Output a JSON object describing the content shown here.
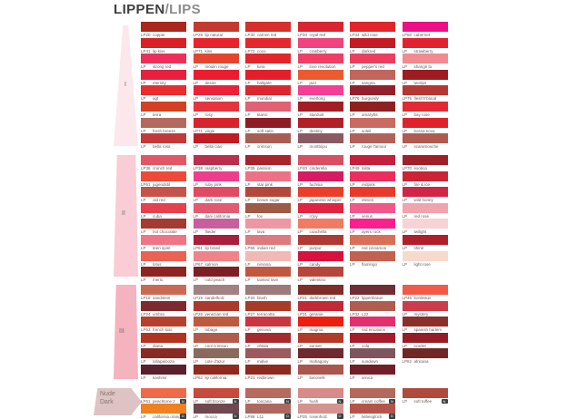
{
  "title": {
    "part1": "LIPPEN",
    "part2": "/LIPS"
  },
  "chart_data": {
    "type": "table",
    "title": "LIPPEN/LIPS",
    "legend_badges": {
      "nude": "N",
      "dark": "D"
    },
    "sections": [
      {
        "id": "I",
        "sidebar_label": "I",
        "bar_color": "#fce8ec",
        "columns": [
          [
            {
              "code": "LP20",
              "name": "copper",
              "color": "#a8281c"
            },
            {
              "code": "LP41",
              "name": "lip kiss",
              "color": "#d92026"
            },
            {
              "code": "LP",
              "name": "strong red",
              "color": "#ee2f5b"
            },
            {
              "code": "LP",
              "name": "eternity",
              "color": "#e6203e"
            },
            {
              "code": "LP",
              "name": "agt",
              "color": "#e92c2c"
            },
            {
              "code": "LP",
              "name": "terra",
              "color": "#d44023"
            },
            {
              "code": "LP",
              "name": "fresh breeze",
              "color": "#b4695d"
            },
            {
              "code": "LP",
              "name": "bella rosa",
              "color": "#c23a3a"
            }
          ],
          [
            {
              "code": "LP28",
              "name": "lip natural",
              "color": "#c53a30"
            },
            {
              "code": "LP71",
              "name": "kiss",
              "color": "#e7242d"
            },
            {
              "code": "LP",
              "name": "moulin rouge",
              "color": "#e34531"
            },
            {
              "code": "LP",
              "name": "desire",
              "color": "#ea1d2f"
            },
            {
              "code": "LP",
              "name": "sensation",
              "color": "#ec2139"
            },
            {
              "code": "LP",
              "name": "rosy",
              "color": "#e5333f"
            },
            {
              "code": "LP71",
              "name": "virgin",
              "color": "#d6242c"
            },
            {
              "code": "LP",
              "name": "bella ciao",
              "color": "#c01e24"
            }
          ],
          [
            {
              "code": "LP30",
              "name": "carmin red",
              "color": "#d7302b"
            },
            {
              "code": "LP72",
              "name": "coco",
              "color": "#e52830"
            },
            {
              "code": "LP",
              "name": "luna",
              "color": "#e2262c"
            },
            {
              "code": "LP",
              "name": "hallgate",
              "color": "#e31f2b"
            },
            {
              "code": "LP",
              "name": "mondial",
              "color": "#dc2731"
            },
            {
              "code": "LP",
              "name": "titanic",
              "color": "#df6174"
            },
            {
              "code": "LP",
              "name": "soft satin",
              "color": "#8e1c24"
            },
            {
              "code": "LP",
              "name": "crimson",
              "color": "#a85e55"
            }
          ],
          [
            {
              "code": "LP33",
              "name": "royal red",
              "color": "#d92531"
            },
            {
              "code": "LP",
              "name": "cranberry",
              "color": "#ef4480"
            },
            {
              "code": "LP",
              "name": "love revolution",
              "color": "#ee3f68"
            },
            {
              "code": "LP",
              "name": "jazz",
              "color": "#ec5a30"
            },
            {
              "code": "LP",
              "name": "everlong",
              "color": "#f53f97"
            },
            {
              "code": "LP",
              "name": "stardust",
              "color": "#a31d24"
            },
            {
              "code": "LP",
              "name": "destiny",
              "color": "#b02026"
            },
            {
              "code": "LP",
              "name": "montbijou",
              "color": "#8a5a63"
            }
          ],
          [
            {
              "code": "LP34",
              "name": "wild rose",
              "color": "#e0262a"
            },
            {
              "code": "LP",
              "name": "darkred",
              "color": "#c31c27"
            },
            {
              "code": "LP",
              "name": "pepper's red",
              "color": "#eb3f60"
            },
            {
              "code": "LP",
              "name": "sangria",
              "color": "#c2655c"
            },
            {
              "code": "LP76",
              "name": "burgundy",
              "color": "#93212d"
            },
            {
              "code": "LP",
              "name": "amaryllis",
              "color": "#8e2020"
            },
            {
              "code": "LP",
              "name": "soleil",
              "color": "#ca6a61"
            },
            {
              "code": "LP",
              "name": "rouge l'amour",
              "color": "#b2615a"
            }
          ],
          [
            {
              "code": "LP60",
              "name": "cabernet",
              "color": "#ec1088"
            },
            {
              "code": "LP",
              "name": "strawberry",
              "color": "#e2232f"
            },
            {
              "code": "LP",
              "name": "shangri la",
              "color": "#f28a90"
            },
            {
              "code": "LP",
              "name": "twolips",
              "color": "#9c1c22"
            },
            {
              "code": "LP76",
              "name": "flesh'n'blood",
              "color": "#b53732"
            },
            {
              "code": "LP",
              "name": "bay rose",
              "color": "#e12b34"
            },
            {
              "code": "LP",
              "name": "bossa nova",
              "color": "#df232d"
            },
            {
              "code": "LP",
              "name": "scaramouche",
              "color": "#b05a50"
            }
          ]
        ]
      },
      {
        "id": "II",
        "sidebar_label": "II",
        "bar_color": "#f9ccd6",
        "columns": [
          [
            {
              "code": "LP36",
              "name": "crunch red",
              "color": "#e25765"
            },
            {
              "code": "LP61",
              "name": "jugendstil",
              "color": "#ef4a39"
            },
            {
              "code": "LP",
              "name": "old red",
              "color": "#c5534a"
            },
            {
              "code": "LP",
              "name": "cuba",
              "color": "#e6404e"
            },
            {
              "code": "LP",
              "name": "hot chocolate",
              "color": "#a43a31"
            },
            {
              "code": "LP",
              "name": "teen spirit",
              "color": "#ef7486"
            },
            {
              "code": "LP",
              "name": "lotus",
              "color": "#eb6152"
            },
            {
              "code": "LP",
              "name": "merlo",
              "color": "#8e2420"
            }
          ],
          [
            {
              "code": "LP38",
              "name": "raspberry",
              "color": "#b92f4d"
            },
            {
              "code": "LP",
              "name": "ruby pink",
              "color": "#ef3d8d"
            },
            {
              "code": "LP",
              "name": "dark rose",
              "color": "#e04a63"
            },
            {
              "code": "LP",
              "name": "dani california",
              "color": "#e25b72"
            },
            {
              "code": "LP",
              "name": "flieder",
              "color": "#c75f9d"
            },
            {
              "code": "LP61",
              "name": "lip brasil",
              "color": "#a81f3d"
            },
            {
              "code": "LP67",
              "name": "salmon",
              "color": "#f28289"
            },
            {
              "code": "LP",
              "name": "cold peach",
              "color": "#7c2026"
            }
          ],
          [
            {
              "code": "LP39",
              "name": "passion",
              "color": "#a8242c"
            },
            {
              "code": "LP",
              "name": "star pink",
              "color": "#ee7187"
            },
            {
              "code": "LP",
              "name": "brown sugar",
              "color": "#b2473a"
            },
            {
              "code": "LP",
              "name": "fox",
              "color": "#9e5a44"
            },
            {
              "code": "LP",
              "name": "lava",
              "color": "#ee97a2"
            },
            {
              "code": "LP66",
              "name": "indian red",
              "color": "#dd7a80"
            },
            {
              "code": "LP",
              "name": "nirvana",
              "color": "#f2b8b6"
            },
            {
              "code": "LP",
              "name": "tainted love",
              "color": "#c25740"
            }
          ],
          [
            {
              "code": "LP40",
              "name": "cinderella",
              "color": "#d84f63"
            },
            {
              "code": "LP",
              "name": "fuchsia",
              "color": "#d81b60"
            },
            {
              "code": "LP",
              "name": "japanese whisper",
              "color": "#ea3e2b"
            },
            {
              "code": "LP",
              "name": "n'joy",
              "color": "#e12441"
            },
            {
              "code": "LP",
              "name": "coachella",
              "color": "#f07a62"
            },
            {
              "code": "LP",
              "name": "purpur",
              "color": "#b03a33"
            },
            {
              "code": "LP",
              "name": "candy",
              "color": "#d9113d"
            },
            {
              "code": "LP",
              "name": "valentino",
              "color": "#b54639"
            }
          ],
          [
            {
              "code": "LP49",
              "name": "lolita",
              "color": "#c41f3e"
            },
            {
              "code": "LP",
              "name": "redpink",
              "color": "#ec2d5e"
            },
            {
              "code": "LP",
              "name": "eleven",
              "color": "#e8392c"
            },
            {
              "code": "LP",
              "name": "venus",
              "color": "#f2578a"
            },
            {
              "code": "LP",
              "name": "ayers rock",
              "color": "#ff1e8e"
            },
            {
              "code": "LP",
              "name": "red cinnamon",
              "color": "#d87058"
            },
            {
              "code": "LP",
              "name": "flamingo",
              "color": "#c4604f"
            }
          ],
          [
            {
              "code": "LP70",
              "name": "exotica",
              "color": "#a02029"
            },
            {
              "code": "LP",
              "name": "fire & ice",
              "color": "#cc2335"
            },
            {
              "code": "LP",
              "name": "wild honey",
              "color": "#d32347"
            },
            {
              "code": "LP",
              "name": "red rose",
              "color": "#f2a4ae"
            },
            {
              "code": "LP",
              "name": "twilight",
              "color": "#f8d3d5"
            },
            {
              "code": "LP",
              "name": "shine",
              "color": "#b01e2c"
            },
            {
              "code": "LP",
              "name": "light rose",
              "color": "#f8dacd"
            }
          ]
        ]
      },
      {
        "id": "III",
        "sidebar_label": "III",
        "bar_color": "#f5b2bf",
        "columns": [
          [
            {
              "code": "LP18",
              "name": "sandstein",
              "color": "#ca6a55"
            },
            {
              "code": "LP24",
              "name": "umbra",
              "color": "#7e2a30"
            },
            {
              "code": "LP63",
              "name": "french kiss",
              "color": "#b5402e"
            },
            {
              "code": "LP",
              "name": "diana",
              "color": "#b13421"
            },
            {
              "code": "LP",
              "name": "lollapalooza",
              "color": "#8a2a24"
            },
            {
              "code": "LP",
              "name": "kashmir",
              "color": "#59202e"
            }
          ],
          [
            {
              "code": "LP19",
              "name": "sandelholz",
              "color": "#a18181"
            },
            {
              "code": "LP26",
              "name": "venezian red",
              "color": "#a93a2c"
            },
            {
              "code": "LP",
              "name": "tobago",
              "color": "#bd5a40"
            },
            {
              "code": "LP",
              "name": "cool crimson",
              "color": "#b25b4d"
            },
            {
              "code": "LP",
              "name": "cote d'azur",
              "color": "#8a6a5f"
            },
            {
              "code": "LP62",
              "name": "lip california",
              "color": "#8e2a1e"
            }
          ],
          [
            {
              "code": "LP20",
              "name": "blush",
              "color": "#9b7a79"
            },
            {
              "code": "LP27",
              "name": "terracotta",
              "color": "#a83a28"
            },
            {
              "code": "LP",
              "name": "genova",
              "color": "#c93540"
            },
            {
              "code": "LP",
              "name": "ohlala",
              "color": "#a52a30"
            },
            {
              "code": "LP",
              "name": "malve",
              "color": "#9c5a5e"
            },
            {
              "code": "LP23",
              "name": "redbrown",
              "color": "#8c2a20"
            }
          ],
          [
            {
              "code": "LP21",
              "name": "darkbrown red",
              "color": "#7e2e28"
            },
            {
              "code": "LP31",
              "name": "geranie",
              "color": "#c22a37"
            },
            {
              "code": "LP",
              "name": "magma",
              "color": "#ef1d10"
            },
            {
              "code": "LP",
              "name": "sunset",
              "color": "#b23a28"
            },
            {
              "code": "LP",
              "name": "mahagony",
              "color": "#6e2a2e"
            },
            {
              "code": "LP",
              "name": "baronelli",
              "color": "#a8564e"
            }
          ],
          [
            {
              "code": "LP22",
              "name": "lippenbraun",
              "color": "#6e2e34"
            },
            {
              "code": "LP32",
              "name": "L22",
              "color": "#b05c4e"
            },
            {
              "code": "LP",
              "name": "red emotions",
              "color": "#e52e6e"
            },
            {
              "code": "LP",
              "name": "cola",
              "color": "#a51d2c"
            },
            {
              "code": "LP",
              "name": "sundown",
              "color": "#7e555c"
            },
            {
              "code": "LP",
              "name": "arnica",
              "color": "#701f28"
            }
          ],
          [
            {
              "code": "LP46",
              "name": "bordeaux",
              "color": "#f05a48"
            },
            {
              "code": "LP",
              "name": "mystery",
              "color": "#cc3c4a"
            },
            {
              "code": "LP",
              "name": "spanish harlem",
              "color": "#8c2e2a"
            },
            {
              "code": "LP",
              "name": "scarlet",
              "color": "#951d26"
            },
            {
              "code": "LP62",
              "name": "africana",
              "color": "#702824"
            }
          ]
        ]
      },
      {
        "id": "nude-dark",
        "bar_color": "#ddc3c3",
        "sidebar_label_lines": [
          "Nude",
          "Dark"
        ],
        "rows": [
          {
            "label": "Nude",
            "badge": "N",
            "cells": [
              {
                "code": "LP61",
                "name": "peachtone 2",
                "color": "#ee6a4a"
              },
              {
                "code": "LP",
                "name": "soft bronze",
                "color": "#c74a3c"
              },
              {
                "code": "LP",
                "name": "toscana",
                "color": "#b86a5e"
              },
              {
                "code": "LP",
                "name": "hush",
                "color": "#d98a86"
              },
              {
                "code": "LP",
                "name": "cream coffee",
                "color": "#b5685c"
              },
              {
                "code": "LP",
                "name": "soft toffee",
                "color": "#b04a3c"
              }
            ]
          },
          {
            "label": "Dark",
            "badge": "D",
            "cells": [
              {
                "code": "LP",
                "name": "california orange",
                "color": "#f08020"
              },
              {
                "code": "LP",
                "name": "mocca",
                "color": "#6f4850"
              },
              {
                "code": "LP98",
                "name": "L11",
                "color": "#ad695f"
              },
              {
                "code": "LP25",
                "name": "rosenholz",
                "color": "#d4938f"
              },
              {
                "code": "LP",
                "name": "liebesglück",
                "color": "#b5544a"
              }
            ]
          }
        ]
      }
    ]
  }
}
